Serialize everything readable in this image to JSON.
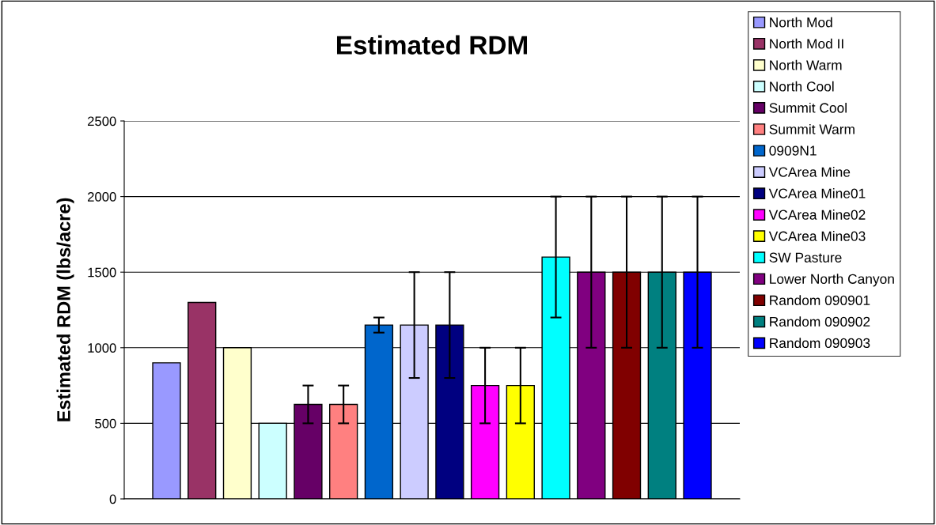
{
  "chart_data": {
    "type": "bar",
    "title": "Estimated RDM",
    "ylabel": "Estimated RDM (lbs/acre)",
    "categories": [
      null
    ],
    "series": [
      {
        "name": "North Mod",
        "color": "#9999ff",
        "values": [
          900
        ]
      },
      {
        "name": "North Mod II",
        "color": "#993366",
        "values": [
          1300
        ]
      },
      {
        "name": "North Warm",
        "color": "#ffffcc",
        "values": [
          1000
        ]
      },
      {
        "name": "North Cool",
        "color": "#ccffff",
        "values": [
          500
        ]
      },
      {
        "name": "Summit Cool",
        "color": "#660066",
        "values": [
          625
        ],
        "errors": [
          125
        ]
      },
      {
        "name": "Summit Warm",
        "color": "#ff8080",
        "values": [
          625
        ],
        "errors": [
          125
        ]
      },
      {
        "name": "0909N1",
        "color": "#0066cc",
        "values": [
          1150
        ],
        "errors": [
          50
        ]
      },
      {
        "name": "VCArea Mine",
        "color": "#ccccff",
        "values": [
          1150
        ],
        "errors": [
          350
        ]
      },
      {
        "name": "VCArea Mine01",
        "color": "#000080",
        "values": [
          1150
        ],
        "errors": [
          350
        ]
      },
      {
        "name": "VCArea Mine02",
        "color": "#ff00ff",
        "values": [
          750
        ],
        "errors": [
          250
        ]
      },
      {
        "name": "VCArea Mine03",
        "color": "#ffff00",
        "values": [
          750
        ],
        "errors": [
          250
        ]
      },
      {
        "name": "SW Pasture",
        "color": "#00ffff",
        "values": [
          1600
        ],
        "errors": [
          400
        ]
      },
      {
        "name": "Lower North Canyon",
        "color": "#800080",
        "values": [
          1500
        ],
        "errors": [
          500
        ]
      },
      {
        "name": "Random 090901",
        "color": "#800000",
        "values": [
          1500
        ],
        "errors": [
          500
        ]
      },
      {
        "name": "Random 090902",
        "color": "#008080",
        "values": [
          1500
        ],
        "errors": [
          500
        ]
      },
      {
        "name": "Random 090903",
        "color": "#0000ff",
        "values": [
          1500
        ],
        "errors": [
          500
        ]
      }
    ],
    "ylim": [
      0,
      2500
    ],
    "yticks": [
      0,
      500,
      1000,
      1500,
      2000,
      2500
    ],
    "grid": "y",
    "legend": "right"
  }
}
